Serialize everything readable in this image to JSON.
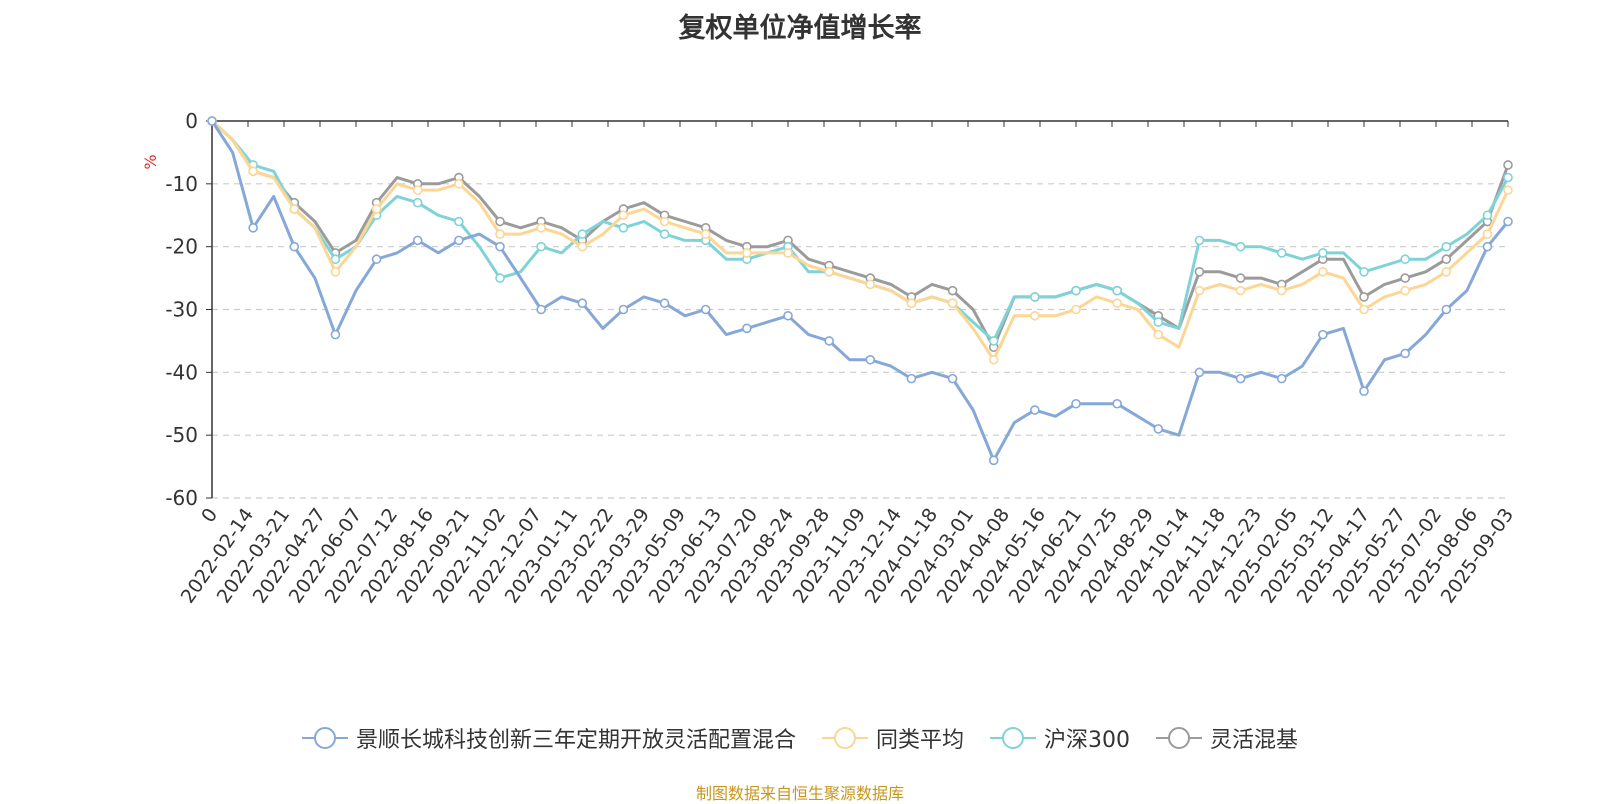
{
  "title": "复权单位净值增长率",
  "source_note": "制图数据来自恒生聚源数据库",
  "chart_data": {
    "type": "line",
    "title": "复权单位净值增长率",
    "ylabel": "%",
    "ylim": [
      -60,
      0
    ],
    "yticks": [
      0,
      -10,
      -20,
      -30,
      -40,
      -50,
      -60
    ],
    "grid": true,
    "legend_position": "bottom",
    "x_tick_labels": [
      "0",
      "2022-02-14",
      "2022-03-21",
      "2022-04-27",
      "2022-06-07",
      "2022-07-12",
      "2022-08-16",
      "2022-09-21",
      "2022-11-02",
      "2022-12-07",
      "2023-01-11",
      "2023-02-22",
      "2023-03-29",
      "2023-05-09",
      "2023-06-13",
      "2023-07-20",
      "2023-08-24",
      "2023-09-28",
      "2023-11-09",
      "2023-12-14",
      "2024-01-18",
      "2024-03-01",
      "2024-04-08",
      "2024-05-16",
      "2024-06-21",
      "2024-07-25",
      "2024-08-29",
      "2024-10-14",
      "2024-11-18",
      "2024-12-23",
      "2025-02-05",
      "2025-03-12",
      "2025-04-17",
      "2025-05-27",
      "2025-07-02",
      "2025-08-06",
      "2025-09-03"
    ],
    "series": [
      {
        "name": "景顺长城科技创新三年定期开放灵活配置混合",
        "color": "#86a8d8",
        "values": [
          0,
          -5,
          -17,
          -12,
          -20,
          -25,
          -34,
          -27,
          -22,
          -21,
          -19,
          -21,
          -19,
          -18,
          -20,
          -25,
          -30,
          -28,
          -29,
          -33,
          -30,
          -28,
          -29,
          -31,
          -30,
          -34,
          -33,
          -32,
          -31,
          -34,
          -35,
          -38,
          -38,
          -39,
          -41,
          -40,
          -41,
          -46,
          -54,
          -48,
          -46,
          -47,
          -45,
          -45,
          -45,
          -47,
          -49,
          -50,
          -40,
          -40,
          -41,
          -40,
          -41,
          -39,
          -34,
          -33,
          -43,
          -38,
          -37,
          -34,
          -30,
          -27,
          -20,
          -16
        ]
      },
      {
        "name": "同类平均",
        "color": "#fbd694",
        "values": [
          0,
          -3,
          -8,
          -9,
          -14,
          -17,
          -24,
          -20,
          -14,
          -10,
          -11,
          -11,
          -10,
          -13,
          -18,
          -18,
          -17,
          -18,
          -20,
          -18,
          -15,
          -14,
          -16,
          -17,
          -18,
          -21,
          -21,
          -21,
          -21,
          -23,
          -24,
          -25,
          -26,
          -27,
          -29,
          -28,
          -29,
          -33,
          -38,
          -31,
          -31,
          -31,
          -30,
          -28,
          -29,
          -30,
          -34,
          -36,
          -27,
          -26,
          -27,
          -26,
          -27,
          -26,
          -24,
          -25,
          -30,
          -28,
          -27,
          -26,
          -24,
          -21,
          -18,
          -11
        ]
      },
      {
        "name": "沪深300",
        "color": "#7fd3d8",
        "values": [
          0,
          -3,
          -7,
          -8,
          -14,
          -17,
          -22,
          -20,
          -15,
          -12,
          -13,
          -15,
          -16,
          -20,
          -25,
          -24,
          -20,
          -21,
          -18,
          -16,
          -17,
          -16,
          -18,
          -19,
          -19,
          -22,
          -22,
          -21,
          -20,
          -24,
          -24,
          -25,
          -26,
          -27,
          -29,
          -28,
          -29,
          -32,
          -35,
          -28,
          -28,
          -28,
          -27,
          -26,
          -27,
          -29,
          -32,
          -33,
          -19,
          -19,
          -20,
          -20,
          -21,
          -22,
          -21,
          -21,
          -24,
          -23,
          -22,
          -22,
          -20,
          -18,
          -15,
          -9
        ]
      },
      {
        "name": "灵活混基",
        "color": "#9b9b9b",
        "values": [
          0,
          -3,
          -8,
          -9,
          -13,
          -16,
          -21,
          -19,
          -13,
          -9,
          -10,
          -10,
          -9,
          -12,
          -16,
          -17,
          -16,
          -17,
          -19,
          -16,
          -14,
          -13,
          -15,
          -16,
          -17,
          -19,
          -20,
          -20,
          -19,
          -22,
          -23,
          -24,
          -25,
          -26,
          -28,
          -26,
          -27,
          -30,
          -36,
          -28,
          -28,
          -28,
          -27,
          -26,
          -27,
          -29,
          -31,
          -33,
          -24,
          -24,
          -25,
          -25,
          -26,
          -24,
          -22,
          -22,
          -28,
          -26,
          -25,
          -24,
          -22,
          -19,
          -16,
          -7
        ]
      }
    ]
  },
  "legend": [
    {
      "label": "景顺长城科技创新三年定期开放灵活配置混合",
      "color": "#86a8d8"
    },
    {
      "label": "同类平均",
      "color": "#fbd694"
    },
    {
      "label": "沪深300",
      "color": "#7fd3d8"
    },
    {
      "label": "灵活混基",
      "color": "#9b9b9b"
    }
  ]
}
